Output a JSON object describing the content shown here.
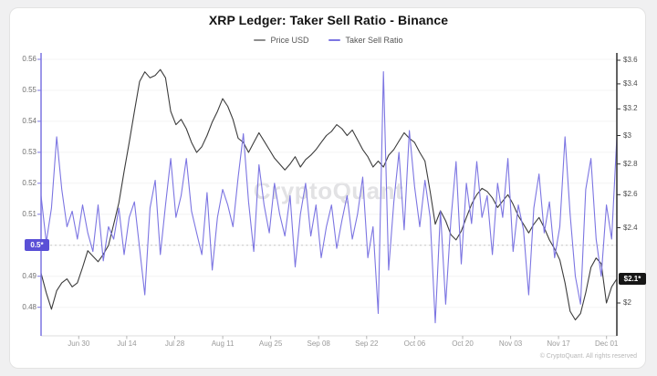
{
  "page": {
    "title": "XRP Ledger: Taker Sell Ratio - Binance",
    "watermark": "CryptoQuant",
    "copyright": "© CryptoQuant. All rights reserved"
  },
  "legend": [
    {
      "label": "Price USD",
      "color": "#8d8d8d"
    },
    {
      "label": "Taker Sell Ratio",
      "color": "#7c75e2"
    }
  ],
  "chart_data": {
    "type": "line",
    "title": "XRP Ledger: Taker Sell Ratio - Binance",
    "grid": "horizontal-faint",
    "x_ticks": [
      {
        "label": "Jun 30",
        "day": 11
      },
      {
        "label": "Jul 14",
        "day": 25
      },
      {
        "label": "Jul 28",
        "day": 39
      },
      {
        "label": "Aug 11",
        "day": 53
      },
      {
        "label": "Aug 25",
        "day": 67
      },
      {
        "label": "Sep 08",
        "day": 81
      },
      {
        "label": "Sep 22",
        "day": 95
      },
      {
        "label": "Oct 06",
        "day": 109
      },
      {
        "label": "Oct 20",
        "day": 123
      },
      {
        "label": "Nov 03",
        "day": 137
      },
      {
        "label": "Nov 17",
        "day": 151
      },
      {
        "label": "Dec 01",
        "day": 165
      }
    ],
    "total_days": 168,
    "left_axis": {
      "series": "Taker Sell Ratio",
      "scale": "linear",
      "min": 0.48,
      "max": 0.56,
      "tick_labels": [
        "0.56",
        "0.55",
        "0.54",
        "0.53",
        "0.52",
        "0.51",
        "0.5",
        "0.49",
        "0.48"
      ],
      "tick_values": [
        0.56,
        0.55,
        0.54,
        0.53,
        0.52,
        0.51,
        0.5,
        0.49,
        0.48
      ],
      "axis_color": "#7c75e2"
    },
    "right_axis": {
      "series": "Price USD",
      "scale": "log",
      "tick_labels": [
        "$3.6",
        "$3.4",
        "$3.2",
        "$3",
        "$2.8",
        "$2.6",
        "$2.4",
        "$2"
      ],
      "tick_values": [
        3.6,
        3.4,
        3.2,
        3.0,
        2.8,
        2.6,
        2.4,
        2.0
      ],
      "axis_color": "#2f2f2f"
    },
    "last_values": {
      "ratio": {
        "text": "0.5*",
        "value": 0.5,
        "badge_color": "#5a50d6",
        "dotted_line": true
      },
      "price": {
        "text": "$2.1*",
        "value": 2.12,
        "badge_color": "#161616",
        "dotted_line": false
      }
    },
    "series": [
      {
        "name": "Price USD",
        "axis": "right",
        "color": "#3c3c3c",
        "values": [
          2.15,
          2.05,
          1.97,
          2.06,
          2.1,
          2.12,
          2.08,
          2.1,
          2.18,
          2.27,
          2.24,
          2.21,
          2.25,
          2.3,
          2.42,
          2.55,
          2.75,
          2.95,
          3.18,
          3.42,
          3.5,
          3.45,
          3.47,
          3.52,
          3.45,
          3.18,
          3.08,
          3.12,
          3.05,
          2.95,
          2.88,
          2.92,
          3.0,
          3.1,
          3.18,
          3.28,
          3.22,
          3.12,
          2.98,
          2.95,
          2.88,
          2.95,
          3.02,
          2.96,
          2.9,
          2.84,
          2.8,
          2.76,
          2.8,
          2.85,
          2.78,
          2.83,
          2.86,
          2.9,
          2.95,
          3.0,
          3.03,
          3.08,
          3.05,
          3.0,
          3.04,
          2.97,
          2.9,
          2.85,
          2.78,
          2.82,
          2.78,
          2.86,
          2.9,
          2.96,
          3.02,
          2.98,
          2.95,
          2.88,
          2.82,
          2.62,
          2.42,
          2.5,
          2.44,
          2.36,
          2.33,
          2.38,
          2.46,
          2.54,
          2.6,
          2.64,
          2.62,
          2.58,
          2.52,
          2.56,
          2.6,
          2.54,
          2.47,
          2.42,
          2.37,
          2.42,
          2.46,
          2.4,
          2.33,
          2.28,
          2.22,
          2.1,
          1.96,
          1.92,
          1.95,
          2.05,
          2.18,
          2.23,
          2.2,
          2.0,
          2.08,
          2.12
        ]
      },
      {
        "name": "Taker Sell Ratio",
        "axis": "left",
        "color": "#7c75e2",
        "values": [
          0.516,
          0.501,
          0.512,
          0.535,
          0.518,
          0.506,
          0.511,
          0.502,
          0.513,
          0.504,
          0.498,
          0.513,
          0.495,
          0.506,
          0.502,
          0.512,
          0.497,
          0.509,
          0.514,
          0.499,
          0.484,
          0.512,
          0.521,
          0.497,
          0.513,
          0.528,
          0.509,
          0.516,
          0.528,
          0.511,
          0.504,
          0.497,
          0.517,
          0.492,
          0.509,
          0.518,
          0.513,
          0.506,
          0.522,
          0.536,
          0.514,
          0.498,
          0.526,
          0.513,
          0.504,
          0.52,
          0.51,
          0.503,
          0.516,
          0.493,
          0.51,
          0.52,
          0.503,
          0.513,
          0.496,
          0.506,
          0.513,
          0.499,
          0.508,
          0.516,
          0.502,
          0.51,
          0.522,
          0.496,
          0.506,
          0.478,
          0.556,
          0.492,
          0.514,
          0.53,
          0.505,
          0.537,
          0.519,
          0.506,
          0.521,
          0.509,
          0.475,
          0.511,
          0.481,
          0.508,
          0.527,
          0.494,
          0.52,
          0.507,
          0.527,
          0.509,
          0.516,
          0.497,
          0.52,
          0.509,
          0.528,
          0.498,
          0.513,
          0.505,
          0.484,
          0.512,
          0.523,
          0.504,
          0.514,
          0.496,
          0.506,
          0.535,
          0.51,
          0.49,
          0.481,
          0.518,
          0.528,
          0.502,
          0.49,
          0.513,
          0.502,
          0.535
        ]
      }
    ]
  }
}
